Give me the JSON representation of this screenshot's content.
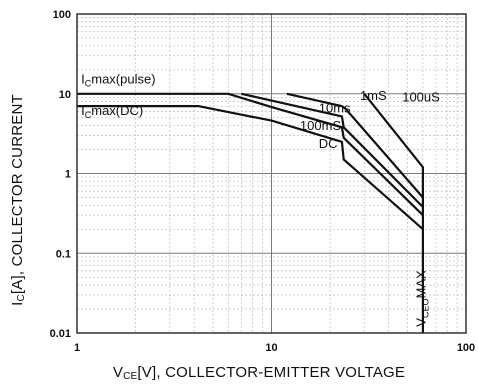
{
  "chart_data": {
    "type": "line",
    "x_scale": "log",
    "y_scale": "log",
    "xlim": [
      1,
      100
    ],
    "ylim": [
      0.01,
      100
    ],
    "x_ticks": [
      "1",
      "10",
      "100"
    ],
    "y_ticks": [
      "100",
      "10",
      "1",
      "0.1",
      "0.01"
    ],
    "x_tick_values": [
      1,
      10,
      100
    ],
    "y_tick_values": [
      100,
      10,
      1,
      0.1,
      0.01
    ],
    "grid": true,
    "ylabel": {
      "pre": "I",
      "sub": "C",
      "post": "[A], COLLECTOR CURRENT"
    },
    "xlabel": {
      "pre": "V",
      "sub": "CE",
      "post": "[V], COLLECTOR-EMITTER VOLTAGE"
    },
    "series": [
      {
        "name": "DC",
        "points": [
          [
            1,
            7
          ],
          [
            4.2,
            7
          ],
          [
            10,
            4.6
          ],
          [
            23,
            2.5
          ],
          [
            23.5,
            1.5
          ],
          [
            60,
            0.2
          ]
        ]
      },
      {
        "name": "100mS",
        "points": [
          [
            1,
            10
          ],
          [
            6,
            10
          ],
          [
            10,
            6.8
          ],
          [
            23,
            3.8
          ],
          [
            23.5,
            2.8
          ],
          [
            60,
            0.3
          ]
        ]
      },
      {
        "name": "10ms",
        "points": [
          [
            7,
            10
          ],
          [
            10,
            8.2
          ],
          [
            23,
            5.2
          ],
          [
            23.5,
            3.8
          ],
          [
            60,
            0.38
          ]
        ]
      },
      {
        "name": "1mS",
        "points": [
          [
            12,
            10
          ],
          [
            23,
            7
          ],
          [
            24,
            6.5
          ],
          [
            60,
            0.5
          ]
        ]
      },
      {
        "name": "100uS",
        "points": [
          [
            30,
            10
          ],
          [
            60,
            1.2
          ],
          [
            60,
            0.01
          ]
        ]
      }
    ],
    "annotations": [
      {
        "pre": "I",
        "sub": "C",
        "post": "max(pulse)",
        "x": 1.05,
        "y": 13.5
      },
      {
        "pre": "I",
        "sub": "C",
        "post": "max(DC)",
        "x": 1.05,
        "y": 5.4
      },
      {
        "pre": "",
        "sub": "",
        "post": "DC",
        "x": 17.5,
        "y": 2.1
      },
      {
        "pre": "",
        "sub": "",
        "post": "100mS",
        "x": 14.0,
        "y": 3.5
      },
      {
        "pre": "",
        "sub": "",
        "post": "10ms",
        "x": 17.5,
        "y": 5.8
      },
      {
        "pre": "",
        "sub": "",
        "post": "1mS",
        "x": 28.5,
        "y": 8.3
      },
      {
        "pre": "",
        "sub": "",
        "post": "100uS",
        "x": 47,
        "y": 8.0
      },
      {
        "pre": "V",
        "sub": "CEO",
        "post": "MAX",
        "x": 62,
        "y": 0.012,
        "vertical": true
      }
    ]
  }
}
